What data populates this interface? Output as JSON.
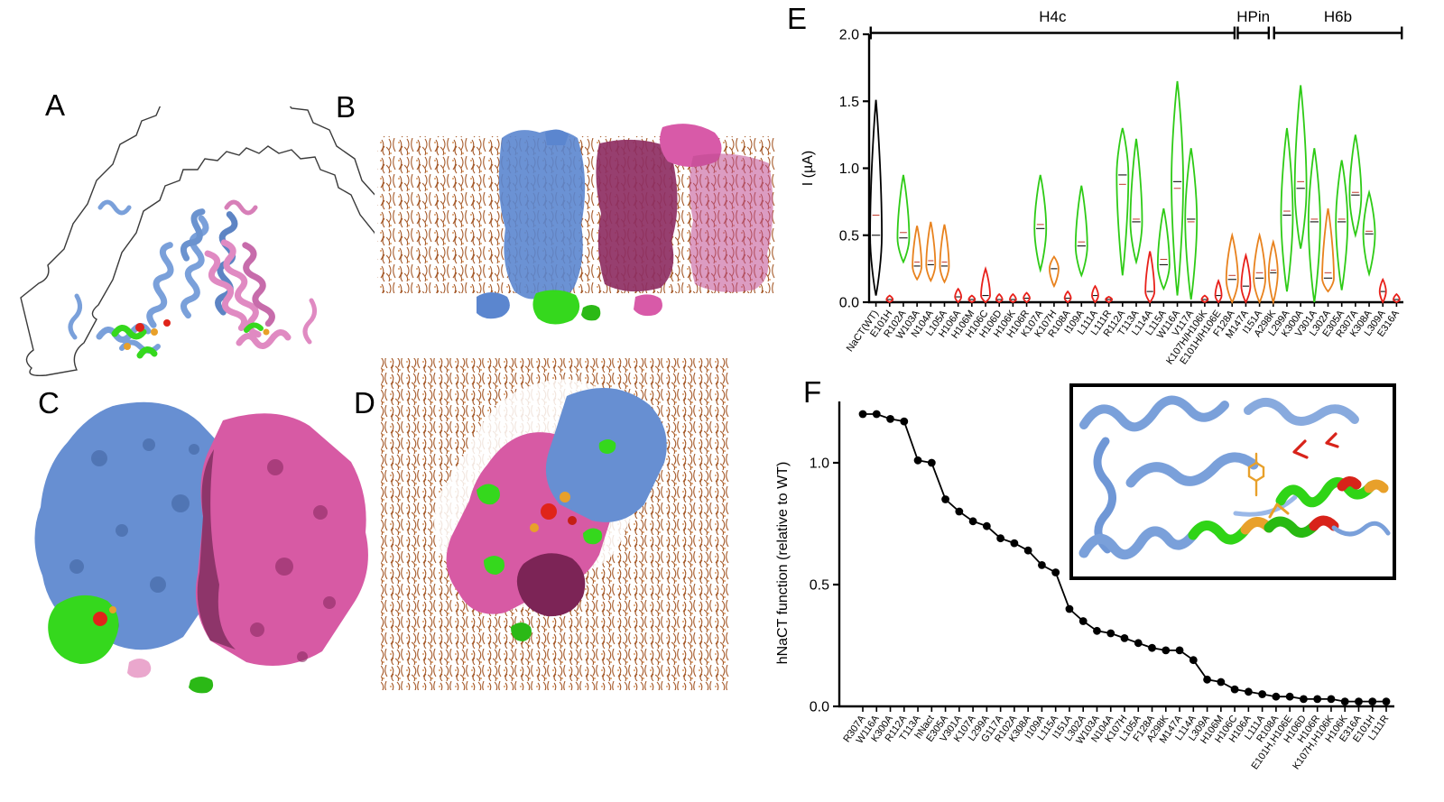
{
  "figure_labels": {
    "a": "A",
    "b": "B",
    "c": "C",
    "d": "D",
    "e": "E",
    "f": "F"
  },
  "colors": {
    "wt": "#000000",
    "green": "#2ecb16",
    "orange": "#e8821e",
    "red": "#e8201a",
    "blue_protein": "#6f97d6",
    "pink_protein": "#e08ac2",
    "magenta_protein": "#d75aa4",
    "dark_magenta": "#8e2f63",
    "lipid_brown": "#a65b2b",
    "residue_green": "#35d81d",
    "residue_red": "#e0241a",
    "residue_orange": "#e8a02a"
  },
  "chart_data": [
    {
      "id": "panel-e",
      "type": "violin",
      "title": "",
      "xlabel": "",
      "ylabel": "I (µA)",
      "ylim": [
        0,
        2.0
      ],
      "yticks": [
        0,
        0.5,
        1.0,
        1.5,
        2.0
      ],
      "grid": false,
      "brackets": [
        {
          "label": "H4c",
          "from": 0.003,
          "to": 0.684
        },
        {
          "label": "HPin",
          "from": 0.69,
          "to": 0.748
        },
        {
          "label": "H6b",
          "from": 0.758,
          "to": 0.997
        }
      ],
      "violins": [
        {
          "name": "NaCT(WT)",
          "color": "wt",
          "min": 0.05,
          "max": 1.51,
          "median": 0.5,
          "mean": 0.65
        },
        {
          "name": "E101H",
          "color": "red",
          "min": 0.0,
          "max": 0.05,
          "median": 0.02
        },
        {
          "name": "R102A",
          "color": "green",
          "min": 0.3,
          "max": 0.95,
          "median": 0.48,
          "mean": 0.52
        },
        {
          "name": "W103A",
          "color": "orange",
          "min": 0.17,
          "max": 0.57,
          "median": 0.27,
          "mean": 0.3
        },
        {
          "name": "N104A",
          "color": "orange",
          "min": 0.16,
          "max": 0.6,
          "median": 0.28,
          "mean": 0.31
        },
        {
          "name": "L105A",
          "color": "orange",
          "min": 0.15,
          "max": 0.58,
          "median": 0.27,
          "mean": 0.3
        },
        {
          "name": "H106A",
          "color": "red",
          "min": 0.0,
          "max": 0.1,
          "median": 0.04
        },
        {
          "name": "H106M",
          "color": "red",
          "min": 0.0,
          "max": 0.05,
          "median": 0.02
        },
        {
          "name": "H106C",
          "color": "red",
          "min": 0.0,
          "max": 0.25,
          "median": 0.05
        },
        {
          "name": "H106D",
          "color": "red",
          "min": 0.0,
          "max": 0.06,
          "median": 0.02
        },
        {
          "name": "H106K",
          "color": "red",
          "min": 0.0,
          "max": 0.06,
          "median": 0.02
        },
        {
          "name": "H106R",
          "color": "red",
          "min": 0.0,
          "max": 0.07,
          "median": 0.03
        },
        {
          "name": "K107A",
          "color": "green",
          "min": 0.24,
          "max": 0.95,
          "median": 0.55,
          "mean": 0.58
        },
        {
          "name": "K107H",
          "color": "orange",
          "min": 0.12,
          "max": 0.34,
          "median": 0.25,
          "mean": 0.24
        },
        {
          "name": "R108A",
          "color": "red",
          "min": 0.0,
          "max": 0.08,
          "median": 0.03
        },
        {
          "name": "I109A",
          "color": "green",
          "min": 0.2,
          "max": 0.87,
          "median": 0.42,
          "mean": 0.45
        },
        {
          "name": "L111A",
          "color": "red",
          "min": 0.0,
          "max": 0.12,
          "median": 0.05
        },
        {
          "name": "L111R",
          "color": "red",
          "min": 0.0,
          "max": 0.04,
          "median": 0.02
        },
        {
          "name": "R112A",
          "color": "green",
          "min": 0.2,
          "max": 1.3,
          "median": 0.95,
          "mean": 0.88
        },
        {
          "name": "T113A",
          "color": "green",
          "min": 0.3,
          "max": 1.22,
          "median": 0.6,
          "mean": 0.62
        },
        {
          "name": "L114A",
          "color": "red",
          "min": 0.0,
          "max": 0.38,
          "median": 0.08
        },
        {
          "name": "L115A",
          "color": "green",
          "min": 0.1,
          "max": 0.7,
          "median": 0.28,
          "mean": 0.32
        },
        {
          "name": "W116A",
          "color": "green",
          "min": 0.05,
          "max": 1.65,
          "median": 0.9,
          "mean": 0.85
        },
        {
          "name": "V117A",
          "color": "green",
          "min": 0.02,
          "max": 1.15,
          "median": 0.62,
          "mean": 0.6
        },
        {
          "name": "K107H/H106K",
          "color": "red",
          "min": 0.0,
          "max": 0.05,
          "median": 0.02
        },
        {
          "name": "E101H/H106E",
          "color": "red",
          "min": 0.0,
          "max": 0.16,
          "median": 0.05
        },
        {
          "name": "F128A",
          "color": "orange",
          "min": 0.0,
          "max": 0.5,
          "median": 0.17,
          "mean": 0.2
        },
        {
          "name": "M147A",
          "color": "red",
          "min": 0.0,
          "max": 0.35,
          "median": 0.12
        },
        {
          "name": "I151A",
          "color": "orange",
          "min": 0.0,
          "max": 0.5,
          "median": 0.18,
          "mean": 0.22
        },
        {
          "name": "A298K",
          "color": "orange",
          "min": 0.0,
          "max": 0.45,
          "median": 0.22,
          "mean": 0.24
        },
        {
          "name": "L299A",
          "color": "green",
          "min": 0.08,
          "max": 1.3,
          "median": 0.65,
          "mean": 0.68
        },
        {
          "name": "K300A",
          "color": "green",
          "min": 0.4,
          "max": 1.62,
          "median": 0.85,
          "mean": 0.9
        },
        {
          "name": "V301A",
          "color": "green",
          "min": 0.0,
          "max": 1.15,
          "median": 0.6,
          "mean": 0.62
        },
        {
          "name": "L302A",
          "color": "orange",
          "min": 0.08,
          "max": 0.7,
          "median": 0.18,
          "mean": 0.22
        },
        {
          "name": "E305A",
          "color": "green",
          "min": 0.09,
          "max": 1.06,
          "median": 0.6,
          "mean": 0.62
        },
        {
          "name": "R307A",
          "color": "green",
          "min": 0.5,
          "max": 1.25,
          "median": 0.8,
          "mean": 0.82
        },
        {
          "name": "K308A",
          "color": "green",
          "min": 0.21,
          "max": 0.82,
          "median": 0.51,
          "mean": 0.53
        },
        {
          "name": "L309A",
          "color": "red",
          "min": 0.0,
          "max": 0.17,
          "median": 0.08
        },
        {
          "name": "E316A",
          "color": "red",
          "min": 0.0,
          "max": 0.06,
          "median": 0.02
        }
      ]
    },
    {
      "id": "panel-f",
      "type": "line",
      "title": "",
      "xlabel": "",
      "ylabel": "hNaCT function (relative to WT)",
      "ylim": [
        0,
        1.26
      ],
      "yticks": [
        0,
        0.5,
        1.0
      ],
      "grid": false,
      "categories": [
        "R307A",
        "W116A",
        "K300A",
        "R112A",
        "T113A",
        "hNact",
        "E305A",
        "V301A",
        "K107A",
        "L299A",
        "G117A",
        "R102A",
        "K308A",
        "I109A",
        "L115A",
        "I151A",
        "L302A",
        "W103A",
        "N104A",
        "K107H",
        "L105A",
        "F128A",
        "A298K",
        "M147A",
        "L114A",
        "L309A",
        "H106M",
        "H106C",
        "H106A",
        "L111A",
        "R108A",
        "E101H,H106E",
        "H106D",
        "H106R",
        "K107H,H106K",
        "H106K",
        "E316A",
        "E101H",
        "L111R"
      ],
      "values": [
        1.2,
        1.2,
        1.18,
        1.17,
        1.01,
        1.0,
        0.85,
        0.8,
        0.76,
        0.74,
        0.69,
        0.67,
        0.64,
        0.58,
        0.55,
        0.4,
        0.35,
        0.31,
        0.3,
        0.28,
        0.26,
        0.24,
        0.23,
        0.23,
        0.19,
        0.11,
        0.1,
        0.07,
        0.06,
        0.05,
        0.04,
        0.04,
        0.03,
        0.03,
        0.03,
        0.02,
        0.02,
        0.02,
        0.02
      ]
    }
  ]
}
